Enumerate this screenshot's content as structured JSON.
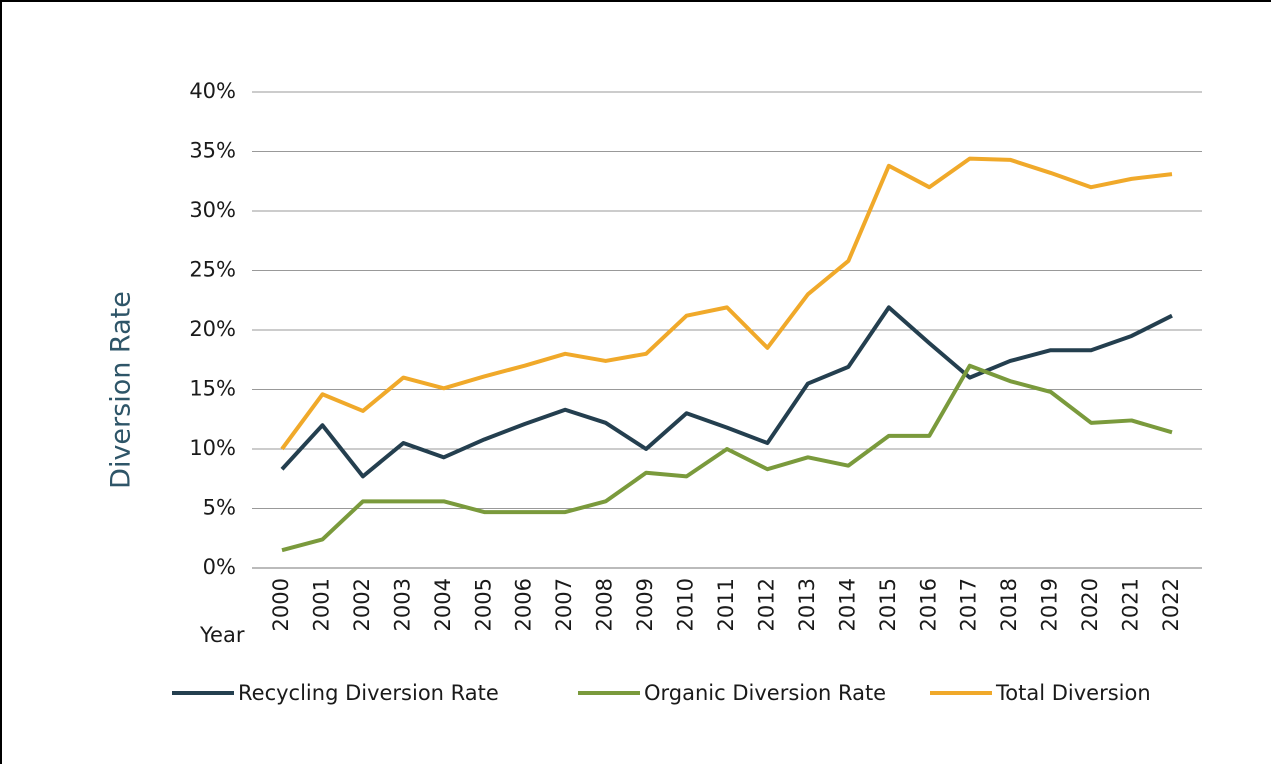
{
  "chart_data": {
    "type": "line",
    "y_label": "Diversion Rate",
    "x_label": "Year",
    "categories": [
      "2000",
      "2001",
      "2002",
      "2003",
      "2004",
      "2005",
      "2006",
      "2007",
      "2008",
      "2009",
      "2010",
      "2011",
      "2012",
      "2013",
      "2014",
      "2015",
      "2016",
      "2017",
      "2018",
      "2019",
      "2020",
      "2021",
      "2022"
    ],
    "series": [
      {
        "name": "Recycling Diversion Rate",
        "color": "#243f4f",
        "values": [
          8.3,
          12,
          7.7,
          10.5,
          9.3,
          10.8,
          12.1,
          13.3,
          12.2,
          10,
          13,
          11.8,
          10.5,
          15.5,
          16.9,
          21.9,
          18.9,
          16,
          17.4,
          18.3,
          18.3,
          19.5,
          21.2
        ]
      },
      {
        "name": "Organic Diversion Rate",
        "color": "#7a9a3c",
        "values": [
          1.5,
          2.4,
          5.6,
          5.6,
          5.6,
          4.7,
          4.7,
          4.7,
          5.6,
          8,
          7.7,
          10,
          8.3,
          9.3,
          8.6,
          11.1,
          11.1,
          17,
          15.7,
          14.8,
          12.2,
          12.4,
          11.4
        ]
      },
      {
        "name": "Total Diversion",
        "color": "#f0a92a",
        "values": [
          10,
          14.6,
          13.2,
          16,
          15.1,
          16.1,
          17,
          18,
          17.4,
          18,
          21.2,
          21.9,
          18.5,
          23,
          25.8,
          33.8,
          32,
          34.4,
          34.3,
          33.2,
          32,
          32.7,
          33.1
        ]
      }
    ],
    "ylim": [
      0,
      40
    ],
    "yticks": [
      {
        "value": 0,
        "label": "0%"
      },
      {
        "value": 5,
        "label": "5%"
      },
      {
        "value": 10,
        "label": "10%"
      },
      {
        "value": 15,
        "label": "15%"
      },
      {
        "value": 20,
        "label": "20%"
      },
      {
        "value": 25,
        "label": "25%"
      },
      {
        "value": 30,
        "label": "30%"
      },
      {
        "value": 35,
        "label": "35%"
      },
      {
        "value": 40,
        "label": "40%"
      }
    ],
    "grid": true,
    "legend": "bottom"
  }
}
